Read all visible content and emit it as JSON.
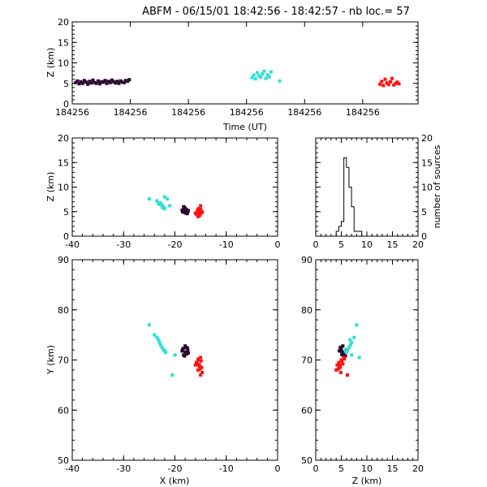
{
  "title": {
    "station": "ABFM",
    "date": "06/15/01",
    "time_range": "18:42:56 - 18:42:57",
    "count_label": "nb loc.=",
    "count_value": "57"
  },
  "colors": {
    "early": "#2a0a2e",
    "middle": "#2ee0d6",
    "late": "#ff1010",
    "histogram": "#000000",
    "boundary": "#000000"
  },
  "chart_data": [
    {
      "id": "time_height",
      "type": "scatter",
      "xlabel": "Time (UT)",
      "ylabel": "Z (km)",
      "x_tick_labels": [
        "184256",
        "184256",
        "184256",
        "184256",
        "184256",
        "184256"
      ],
      "ylim": [
        0,
        20
      ],
      "y_ticks": [
        0,
        5,
        10,
        15,
        20
      ],
      "xlim": [
        0,
        1
      ],
      "series": [
        {
          "color_key": "early",
          "points": [
            [
              0.01,
              5.2
            ],
            [
              0.015,
              5.6
            ],
            [
              0.02,
              4.9
            ],
            [
              0.025,
              5.4
            ],
            [
              0.03,
              5.0
            ],
            [
              0.035,
              5.7
            ],
            [
              0.04,
              5.3
            ],
            [
              0.045,
              4.8
            ],
            [
              0.05,
              5.5
            ],
            [
              0.055,
              5.1
            ],
            [
              0.06,
              5.8
            ],
            [
              0.065,
              5.2
            ],
            [
              0.07,
              5.0
            ],
            [
              0.075,
              5.6
            ],
            [
              0.08,
              4.9
            ],
            [
              0.085,
              5.4
            ],
            [
              0.09,
              5.3
            ],
            [
              0.095,
              5.7
            ],
            [
              0.1,
              5.0
            ],
            [
              0.105,
              5.5
            ],
            [
              0.11,
              5.2
            ],
            [
              0.115,
              5.8
            ],
            [
              0.12,
              5.4
            ],
            [
              0.125,
              5.1
            ],
            [
              0.13,
              5.5
            ],
            [
              0.135,
              5.0
            ],
            [
              0.14,
              5.6
            ],
            [
              0.145,
              5.3
            ],
            [
              0.15,
              5.2
            ],
            [
              0.155,
              5.7
            ],
            [
              0.16,
              5.5
            ],
            [
              0.165,
              5.9
            ]
          ]
        },
        {
          "color_key": "middle",
          "points": [
            [
              0.52,
              6.4
            ],
            [
              0.525,
              7.0
            ],
            [
              0.53,
              6.1
            ],
            [
              0.535,
              7.6
            ],
            [
              0.54,
              6.8
            ],
            [
              0.545,
              6.5
            ],
            [
              0.55,
              7.3
            ],
            [
              0.555,
              8.0
            ],
            [
              0.56,
              6.2
            ],
            [
              0.565,
              7.1
            ],
            [
              0.57,
              6.6
            ],
            [
              0.575,
              7.8
            ],
            [
              0.6,
              5.6
            ]
          ]
        },
        {
          "color_key": "late",
          "points": [
            [
              0.89,
              4.8
            ],
            [
              0.895,
              5.5
            ],
            [
              0.9,
              4.5
            ],
            [
              0.905,
              6.0
            ],
            [
              0.91,
              5.1
            ],
            [
              0.915,
              4.7
            ],
            [
              0.92,
              5.4
            ],
            [
              0.925,
              6.2
            ],
            [
              0.93,
              4.6
            ],
            [
              0.935,
              5.0
            ],
            [
              0.94,
              5.3
            ],
            [
              0.945,
              4.9
            ]
          ]
        }
      ]
    },
    {
      "id": "x_height",
      "type": "scatter",
      "xlabel": "",
      "ylabel": "Z (km)",
      "xlim": [
        -40,
        0
      ],
      "x_ticks": [
        -40,
        -30,
        -20,
        -10,
        0
      ],
      "ylim": [
        0,
        20
      ],
      "y_ticks": [
        0,
        5,
        10,
        15,
        20
      ],
      "series": [
        {
          "color_key": "early",
          "points": [
            [
              -18.5,
              5.0
            ],
            [
              -18.2,
              5.5
            ],
            [
              -18.0,
              4.8
            ],
            [
              -17.8,
              5.2
            ],
            [
              -18.3,
              6.0
            ],
            [
              -17.6,
              4.6
            ],
            [
              -18.1,
              5.8
            ],
            [
              -17.9,
              5.1
            ],
            [
              -18.4,
              4.9
            ],
            [
              -17.7,
              5.4
            ],
            [
              -18.0,
              5.6
            ],
            [
              -17.5,
              5.0
            ],
            [
              -18.6,
              5.3
            ],
            [
              -17.8,
              4.7
            ],
            [
              -18.2,
              5.9
            ],
            [
              -17.4,
              5.2
            ]
          ]
        },
        {
          "color_key": "middle",
          "points": [
            [
              -25.0,
              7.6
            ],
            [
              -22.0,
              8.0
            ],
            [
              -23.5,
              7.2
            ],
            [
              -23.0,
              6.5
            ],
            [
              -22.8,
              6.8
            ],
            [
              -22.5,
              6.2
            ],
            [
              -22.2,
              6.0
            ],
            [
              -23.2,
              6.7
            ],
            [
              -22.6,
              6.4
            ],
            [
              -22.4,
              5.8
            ],
            [
              -21.5,
              7.6
            ],
            [
              -21.0,
              6.2
            ],
            [
              -22.0,
              5.6
            ]
          ]
        },
        {
          "color_key": "late",
          "points": [
            [
              -15.8,
              4.5
            ],
            [
              -15.5,
              5.0
            ],
            [
              -15.2,
              4.2
            ],
            [
              -15.0,
              5.5
            ],
            [
              -14.8,
              4.8
            ],
            [
              -15.6,
              5.3
            ],
            [
              -15.3,
              4.6
            ],
            [
              -14.9,
              5.1
            ],
            [
              -15.1,
              4.4
            ],
            [
              -15.4,
              5.6
            ],
            [
              -14.7,
              4.9
            ],
            [
              -15.0,
              6.2
            ],
            [
              -16.0,
              4.7
            ],
            [
              -15.5,
              4.0
            ]
          ]
        }
      ]
    },
    {
      "id": "height_histogram",
      "type": "bar",
      "xlabel": "",
      "ylabel": "number of sources",
      "xlim": [
        0,
        20
      ],
      "x_ticks": [
        0,
        5,
        10,
        15,
        20
      ],
      "ylim": [
        0,
        20
      ],
      "y_ticks": [
        0,
        5,
        10,
        15,
        20
      ],
      "bin_width": 0.5,
      "bin_start": 0,
      "values": [
        0,
        0,
        0,
        0,
        0,
        0,
        0,
        0,
        1,
        2,
        3,
        16,
        14,
        10,
        6,
        1,
        1,
        1,
        0,
        0,
        0,
        0,
        0,
        0,
        0,
        0,
        0,
        0,
        0,
        0,
        0,
        0,
        0,
        0,
        0,
        0,
        0,
        0,
        0,
        0
      ]
    },
    {
      "id": "plan_view",
      "type": "scatter",
      "xlabel": "X (km)",
      "ylabel": "Y (km)",
      "xlim": [
        -40,
        0
      ],
      "x_ticks": [
        -40,
        -30,
        -20,
        -10,
        0
      ],
      "ylim": [
        50,
        90
      ],
      "y_ticks": [
        50,
        60,
        70,
        80,
        90
      ],
      "series": [
        {
          "color_key": "early",
          "points": [
            [
              -18.5,
              72.0
            ],
            [
              -18.0,
              71.5
            ],
            [
              -17.8,
              72.5
            ],
            [
              -18.3,
              71.0
            ],
            [
              -17.5,
              72.0
            ],
            [
              -18.6,
              71.8
            ],
            [
              -18.1,
              70.8
            ],
            [
              -17.7,
              71.2
            ],
            [
              -18.4,
              72.3
            ],
            [
              -17.9,
              71.6
            ],
            [
              -18.2,
              70.9
            ],
            [
              -17.6,
              72.4
            ],
            [
              -18.0,
              72.8
            ],
            [
              -17.4,
              71.4
            ]
          ]
        },
        {
          "color_key": "middle",
          "points": [
            [
              -25.0,
              77.0
            ],
            [
              -23.5,
              74.5
            ],
            [
              -23.0,
              73.5
            ],
            [
              -22.5,
              72.5
            ],
            [
              -22.8,
              73.0
            ],
            [
              -22.2,
              72.0
            ],
            [
              -21.8,
              71.5
            ],
            [
              -23.2,
              74.0
            ],
            [
              -22.0,
              71.8
            ],
            [
              -24.0,
              75.0
            ],
            [
              -20.5,
              67.0
            ],
            [
              -20.0,
              71.0
            ]
          ]
        },
        {
          "color_key": "late",
          "points": [
            [
              -15.8,
              69.5
            ],
            [
              -15.5,
              70.0
            ],
            [
              -15.2,
              69.0
            ],
            [
              -15.0,
              70.5
            ],
            [
              -14.8,
              68.5
            ],
            [
              -15.6,
              69.2
            ],
            [
              -15.3,
              68.8
            ],
            [
              -14.9,
              69.8
            ],
            [
              -15.1,
              68.2
            ],
            [
              -15.4,
              70.2
            ],
            [
              -14.7,
              67.5
            ],
            [
              -15.0,
              67.0
            ],
            [
              -16.0,
              69.0
            ],
            [
              -15.5,
              68.0
            ]
          ]
        }
      ]
    },
    {
      "id": "height_y",
      "type": "scatter",
      "xlabel": "Z (km)",
      "ylabel": "",
      "xlim": [
        0,
        20
      ],
      "x_ticks": [
        0,
        5,
        10,
        15,
        20
      ],
      "ylim": [
        50,
        90
      ],
      "y_ticks": [
        50,
        60,
        70,
        80,
        90
      ],
      "series": [
        {
          "color_key": "early",
          "points": [
            [
              5.0,
              72.0
            ],
            [
              5.5,
              71.5
            ],
            [
              4.8,
              72.5
            ],
            [
              5.2,
              71.0
            ],
            [
              6.0,
              72.0
            ],
            [
              4.6,
              71.8
            ],
            [
              5.8,
              70.8
            ],
            [
              5.1,
              71.2
            ],
            [
              4.9,
              72.3
            ],
            [
              5.4,
              71.6
            ],
            [
              5.6,
              70.9
            ],
            [
              5.0,
              72.4
            ],
            [
              5.3,
              72.8
            ],
            [
              5.2,
              71.4
            ]
          ]
        },
        {
          "color_key": "middle",
          "points": [
            [
              8.0,
              77.0
            ],
            [
              7.5,
              74.5
            ],
            [
              7.0,
              73.5
            ],
            [
              6.5,
              72.5
            ],
            [
              6.8,
              73.0
            ],
            [
              6.2,
              72.0
            ],
            [
              6.0,
              71.5
            ],
            [
              6.7,
              74.0
            ],
            [
              5.8,
              71.8
            ],
            [
              8.5,
              70.5
            ],
            [
              6.2,
              67.0
            ],
            [
              7.0,
              71.0
            ]
          ]
        },
        {
          "color_key": "late",
          "points": [
            [
              4.5,
              69.5
            ],
            [
              5.0,
              70.0
            ],
            [
              4.2,
              69.0
            ],
            [
              5.5,
              70.5
            ],
            [
              4.8,
              68.5
            ],
            [
              5.3,
              69.2
            ],
            [
              4.6,
              68.8
            ],
            [
              5.1,
              69.8
            ],
            [
              4.4,
              68.2
            ],
            [
              5.6,
              70.2
            ],
            [
              4.9,
              67.5
            ],
            [
              6.2,
              67.0
            ],
            [
              4.7,
              69.0
            ],
            [
              4.0,
              68.0
            ]
          ]
        }
      ]
    }
  ]
}
